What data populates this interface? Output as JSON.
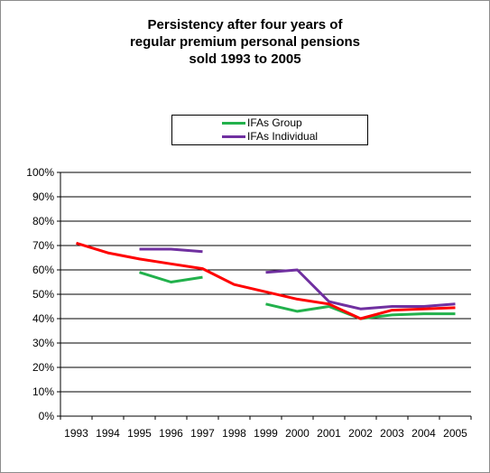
{
  "chart_data": {
    "type": "line",
    "title_lines": [
      "Persistency after four years of",
      "regular premium personal  pensions",
      "sold 1993 to 2005"
    ],
    "x": [
      "1993",
      "1994",
      "1995",
      "1996",
      "1997",
      "1998",
      "1999",
      "2000",
      "2001",
      "2002",
      "2003",
      "2004",
      "2005"
    ],
    "ylim": [
      0,
      1
    ],
    "yticks": [
      "0%",
      "10%",
      "20%",
      "30%",
      "40%",
      "50%",
      "60%",
      "70%",
      "80%",
      "90%",
      "100%"
    ],
    "grid": true,
    "legend_position": "top-center",
    "series": [
      {
        "name": "IFAs Group",
        "color": "#22b14c",
        "values": [
          null,
          null,
          0.59,
          0.55,
          0.57,
          null,
          0.46,
          0.43,
          0.45,
          0.4,
          0.415,
          0.42,
          0.42
        ]
      },
      {
        "name": "IFAs Individual",
        "color": "#7030a0",
        "values": [
          null,
          null,
          0.685,
          0.685,
          0.675,
          null,
          0.59,
          0.6,
          0.47,
          0.44,
          0.45,
          0.45,
          0.46
        ]
      },
      {
        "color": "#ff0000",
        "values": [
          0.71,
          0.67,
          0.645,
          0.625,
          0.605,
          0.54,
          0.51,
          0.48,
          0.46,
          0.4,
          0.435,
          0.44,
          0.445
        ]
      }
    ]
  }
}
